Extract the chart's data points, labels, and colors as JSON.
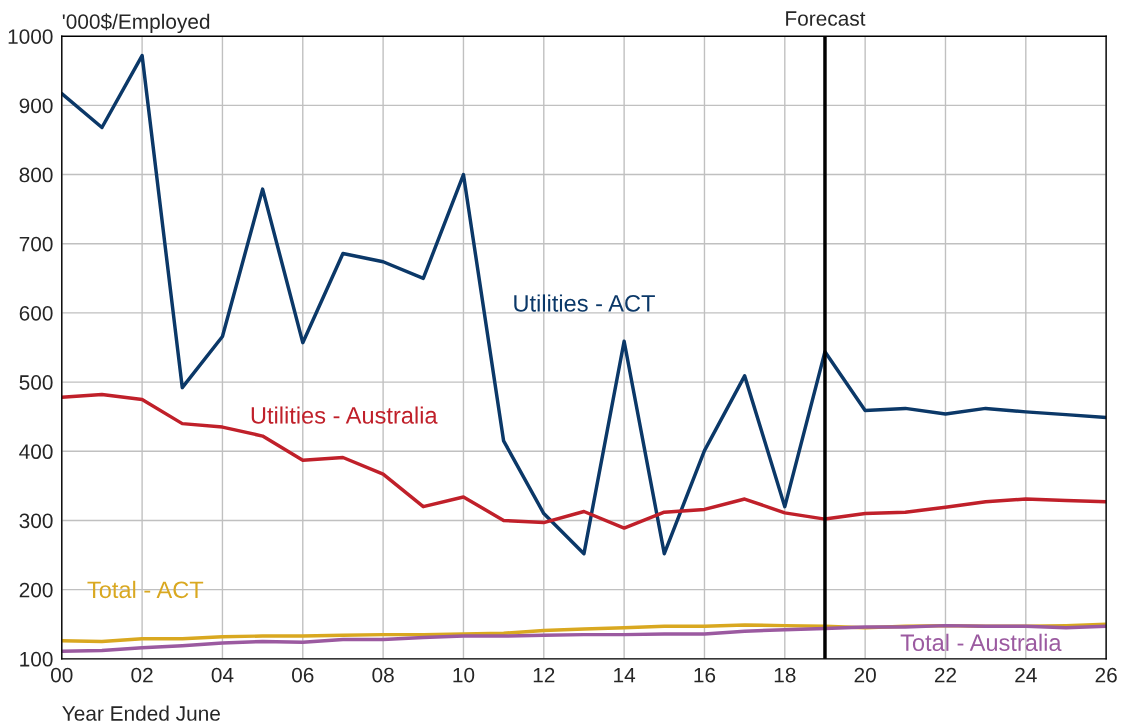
{
  "chart_data": {
    "type": "line",
    "ylabel": "'000$/Employed",
    "xlabel": "Year Ended June",
    "x": [
      2000,
      2001,
      2002,
      2003,
      2004,
      2005,
      2006,
      2007,
      2008,
      2009,
      2010,
      2011,
      2012,
      2013,
      2014,
      2015,
      2016,
      2017,
      2018,
      2019,
      2020,
      2021,
      2022,
      2023,
      2024,
      2025,
      2026
    ],
    "series": [
      {
        "name": "Utilities - ACT",
        "color": "#0b3868",
        "values": [
          917,
          868,
          972,
          492,
          566,
          779,
          557,
          686,
          674,
          650,
          800,
          415,
          310,
          252,
          559,
          252,
          401,
          509,
          320,
          544,
          459,
          462,
          454,
          462,
          457,
          453,
          449
        ]
      },
      {
        "name": "Utilities - Australia",
        "color": "#c0202a",
        "values": [
          478,
          482,
          475,
          440,
          435,
          422,
          387,
          391,
          367,
          320,
          334,
          300,
          297,
          313,
          289,
          312,
          316,
          331,
          311,
          302,
          310,
          312,
          319,
          327,
          331,
          329,
          327
        ]
      },
      {
        "name": "Total - ACT",
        "color": "#d9a820",
        "values": [
          126,
          125,
          129,
          129,
          132,
          133,
          133,
          134,
          135,
          135,
          136,
          137,
          141,
          143,
          145,
          147,
          147,
          149,
          148,
          147,
          145,
          147,
          148,
          147,
          147,
          148,
          150
        ]
      },
      {
        "name": "Total - Australia",
        "color": "#9b5aa0",
        "values": [
          111,
          112,
          116,
          119,
          123,
          125,
          124,
          128,
          128,
          131,
          133,
          133,
          134,
          135,
          135,
          136,
          136,
          140,
          142,
          144,
          146,
          146,
          148,
          147,
          147,
          145,
          147
        ]
      }
    ],
    "xlim": [
      2000,
      2026
    ],
    "xticks": [
      {
        "value": 2000,
        "label": "00"
      },
      {
        "value": 2002,
        "label": "02"
      },
      {
        "value": 2004,
        "label": "04"
      },
      {
        "value": 2006,
        "label": "06"
      },
      {
        "value": 2008,
        "label": "08"
      },
      {
        "value": 2010,
        "label": "10"
      },
      {
        "value": 2012,
        "label": "12"
      },
      {
        "value": 2014,
        "label": "14"
      },
      {
        "value": 2016,
        "label": "16"
      },
      {
        "value": 2018,
        "label": "18"
      },
      {
        "value": 2020,
        "label": "20"
      },
      {
        "value": 2022,
        "label": "22"
      },
      {
        "value": 2024,
        "label": "24"
      },
      {
        "value": 2026,
        "label": "26"
      }
    ],
    "ylim": [
      100,
      1000
    ],
    "yticks": [
      100,
      200,
      300,
      400,
      500,
      600,
      700,
      800,
      900,
      1000
    ],
    "ref_lines": [
      {
        "axis": "x",
        "value": 2019,
        "label": "Forecast",
        "color": "#000000"
      }
    ],
    "grid": true,
    "legend": false,
    "marker": "none",
    "line_style": "solid"
  }
}
